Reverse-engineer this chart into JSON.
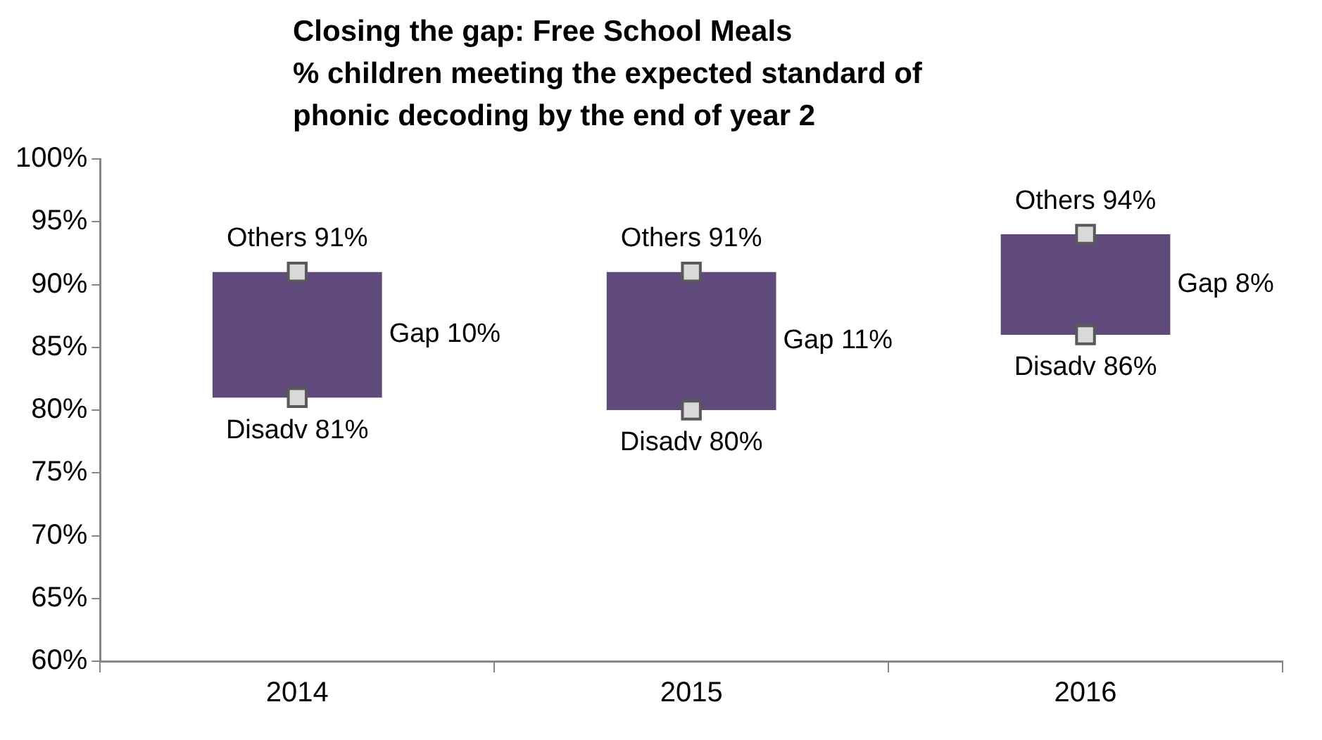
{
  "chart_data": {
    "type": "bar",
    "title": "Closing the gap: Free School Meals\n% children meeting the expected standard of\nphonic decoding by the end of year 2",
    "categories": [
      "2014",
      "2015",
      "2016"
    ],
    "ylim": [
      60,
      100
    ],
    "yticks": [
      {
        "value": 60,
        "label": "60%"
      },
      {
        "value": 65,
        "label": "65%"
      },
      {
        "value": 70,
        "label": "70%"
      },
      {
        "value": 75,
        "label": "75%"
      },
      {
        "value": 80,
        "label": "80%"
      },
      {
        "value": 85,
        "label": "85%"
      },
      {
        "value": 90,
        "label": "90%"
      },
      {
        "value": 95,
        "label": "95%"
      },
      {
        "value": 100,
        "label": "100%"
      }
    ],
    "grid": false,
    "legend": false,
    "annotations": [
      "Gap 10%",
      "Gap 11%",
      "Gap 8%"
    ],
    "series": [
      {
        "type": "bar",
        "color": "#604a7b",
        "base": [
          81,
          80,
          86
        ],
        "values": [
          10,
          11,
          8
        ]
      },
      {
        "type": "scatter",
        "color": "#d9d9d9",
        "marker": "square",
        "values": [
          91,
          91,
          94
        ],
        "value_labels": [
          "Others 91%",
          "Others 91%",
          "Others 94%"
        ]
      },
      {
        "type": "scatter",
        "color": "#d9d9d9",
        "marker": "square",
        "values": [
          81,
          80,
          86
        ],
        "value_labels": [
          "Disadv 81%",
          "Disadv 80%",
          "Disadv 86%"
        ]
      }
    ]
  }
}
